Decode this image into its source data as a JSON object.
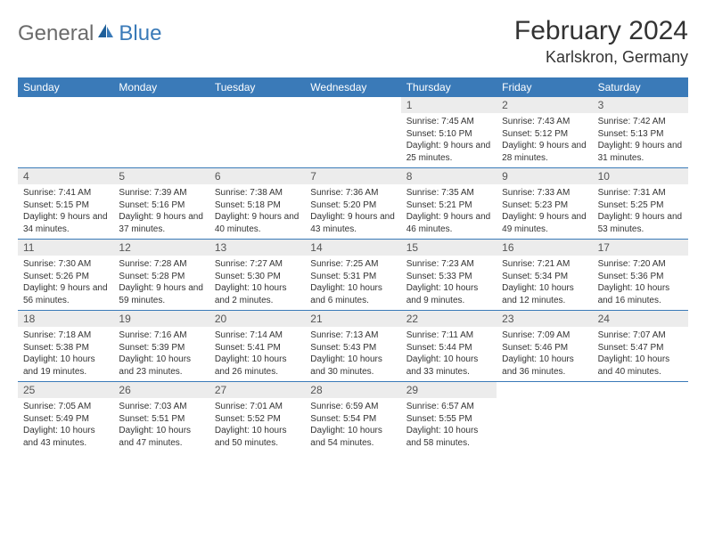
{
  "brand": {
    "general": "General",
    "blue": "Blue"
  },
  "title": "February 2024",
  "location": "Karlskron, Germany",
  "colors": {
    "header_bg": "#3a7ab8",
    "daynum_bg": "#ececec",
    "text": "#333333",
    "logo_gray": "#6b6b6b"
  },
  "day_headers": [
    "Sunday",
    "Monday",
    "Tuesday",
    "Wednesday",
    "Thursday",
    "Friday",
    "Saturday"
  ],
  "weeks": [
    [
      null,
      null,
      null,
      null,
      {
        "n": "1",
        "sunrise": "7:45 AM",
        "sunset": "5:10 PM",
        "daylight": "9 hours and 25 minutes."
      },
      {
        "n": "2",
        "sunrise": "7:43 AM",
        "sunset": "5:12 PM",
        "daylight": "9 hours and 28 minutes."
      },
      {
        "n": "3",
        "sunrise": "7:42 AM",
        "sunset": "5:13 PM",
        "daylight": "9 hours and 31 minutes."
      }
    ],
    [
      {
        "n": "4",
        "sunrise": "7:41 AM",
        "sunset": "5:15 PM",
        "daylight": "9 hours and 34 minutes."
      },
      {
        "n": "5",
        "sunrise": "7:39 AM",
        "sunset": "5:16 PM",
        "daylight": "9 hours and 37 minutes."
      },
      {
        "n": "6",
        "sunrise": "7:38 AM",
        "sunset": "5:18 PM",
        "daylight": "9 hours and 40 minutes."
      },
      {
        "n": "7",
        "sunrise": "7:36 AM",
        "sunset": "5:20 PM",
        "daylight": "9 hours and 43 minutes."
      },
      {
        "n": "8",
        "sunrise": "7:35 AM",
        "sunset": "5:21 PM",
        "daylight": "9 hours and 46 minutes."
      },
      {
        "n": "9",
        "sunrise": "7:33 AM",
        "sunset": "5:23 PM",
        "daylight": "9 hours and 49 minutes."
      },
      {
        "n": "10",
        "sunrise": "7:31 AM",
        "sunset": "5:25 PM",
        "daylight": "9 hours and 53 minutes."
      }
    ],
    [
      {
        "n": "11",
        "sunrise": "7:30 AM",
        "sunset": "5:26 PM",
        "daylight": "9 hours and 56 minutes."
      },
      {
        "n": "12",
        "sunrise": "7:28 AM",
        "sunset": "5:28 PM",
        "daylight": "9 hours and 59 minutes."
      },
      {
        "n": "13",
        "sunrise": "7:27 AM",
        "sunset": "5:30 PM",
        "daylight": "10 hours and 2 minutes."
      },
      {
        "n": "14",
        "sunrise": "7:25 AM",
        "sunset": "5:31 PM",
        "daylight": "10 hours and 6 minutes."
      },
      {
        "n": "15",
        "sunrise": "7:23 AM",
        "sunset": "5:33 PM",
        "daylight": "10 hours and 9 minutes."
      },
      {
        "n": "16",
        "sunrise": "7:21 AM",
        "sunset": "5:34 PM",
        "daylight": "10 hours and 12 minutes."
      },
      {
        "n": "17",
        "sunrise": "7:20 AM",
        "sunset": "5:36 PM",
        "daylight": "10 hours and 16 minutes."
      }
    ],
    [
      {
        "n": "18",
        "sunrise": "7:18 AM",
        "sunset": "5:38 PM",
        "daylight": "10 hours and 19 minutes."
      },
      {
        "n": "19",
        "sunrise": "7:16 AM",
        "sunset": "5:39 PM",
        "daylight": "10 hours and 23 minutes."
      },
      {
        "n": "20",
        "sunrise": "7:14 AM",
        "sunset": "5:41 PM",
        "daylight": "10 hours and 26 minutes."
      },
      {
        "n": "21",
        "sunrise": "7:13 AM",
        "sunset": "5:43 PM",
        "daylight": "10 hours and 30 minutes."
      },
      {
        "n": "22",
        "sunrise": "7:11 AM",
        "sunset": "5:44 PM",
        "daylight": "10 hours and 33 minutes."
      },
      {
        "n": "23",
        "sunrise": "7:09 AM",
        "sunset": "5:46 PM",
        "daylight": "10 hours and 36 minutes."
      },
      {
        "n": "24",
        "sunrise": "7:07 AM",
        "sunset": "5:47 PM",
        "daylight": "10 hours and 40 minutes."
      }
    ],
    [
      {
        "n": "25",
        "sunrise": "7:05 AM",
        "sunset": "5:49 PM",
        "daylight": "10 hours and 43 minutes."
      },
      {
        "n": "26",
        "sunrise": "7:03 AM",
        "sunset": "5:51 PM",
        "daylight": "10 hours and 47 minutes."
      },
      {
        "n": "27",
        "sunrise": "7:01 AM",
        "sunset": "5:52 PM",
        "daylight": "10 hours and 50 minutes."
      },
      {
        "n": "28",
        "sunrise": "6:59 AM",
        "sunset": "5:54 PM",
        "daylight": "10 hours and 54 minutes."
      },
      {
        "n": "29",
        "sunrise": "6:57 AM",
        "sunset": "5:55 PM",
        "daylight": "10 hours and 58 minutes."
      },
      null,
      null
    ]
  ],
  "labels": {
    "sunrise": "Sunrise: ",
    "sunset": "Sunset: ",
    "daylight": "Daylight: "
  }
}
